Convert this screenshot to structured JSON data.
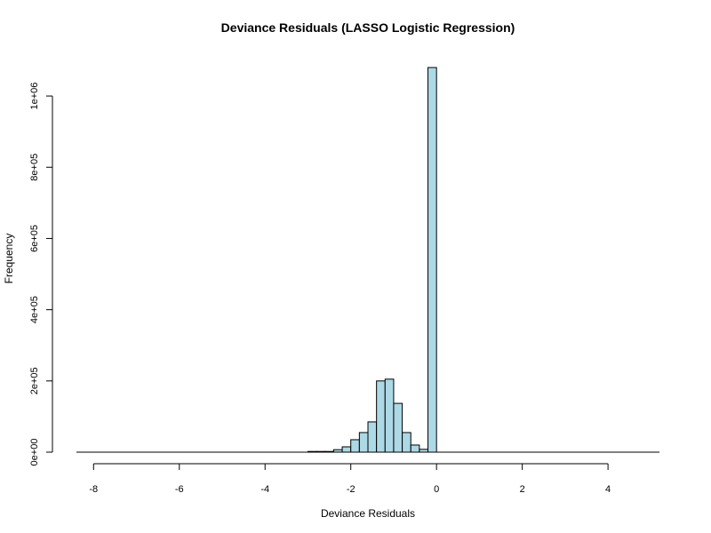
{
  "chart_data": {
    "type": "bar",
    "title": "Deviance Residuals (LASSO Logistic Regression)",
    "xlabel": "Deviance Residuals",
    "ylabel": "Frequency",
    "xlim": [
      -8.4,
      5.2
    ],
    "ylim": [
      0,
      1080000
    ],
    "x_ticks": [
      -8,
      -6,
      -4,
      -2,
      0,
      2,
      4
    ],
    "x_tick_labels": [
      "-8",
      "-6",
      "-4",
      "-2",
      "0",
      "2",
      "4"
    ],
    "y_ticks": [
      0,
      200000,
      400000,
      600000,
      800000,
      1000000
    ],
    "y_tick_labels": [
      "0e+00",
      "2e+05",
      "4e+05",
      "6e+05",
      "8e+05",
      "1e+06"
    ],
    "bar_fill": "#add8e6",
    "bar_stroke": "#000000",
    "grid": false,
    "legend": "none",
    "bins": [
      {
        "x0": -8.4,
        "x1": -3.0,
        "count": 0
      },
      {
        "x0": -3.0,
        "x1": -2.8,
        "count": 2000
      },
      {
        "x0": -2.8,
        "x1": -2.6,
        "count": 2000
      },
      {
        "x0": -2.6,
        "x1": -2.4,
        "count": 2000
      },
      {
        "x0": -2.4,
        "x1": -2.2,
        "count": 7000
      },
      {
        "x0": -2.2,
        "x1": -2.0,
        "count": 15000
      },
      {
        "x0": -2.0,
        "x1": -1.8,
        "count": 35000
      },
      {
        "x0": -1.8,
        "x1": -1.6,
        "count": 55000
      },
      {
        "x0": -1.6,
        "x1": -1.4,
        "count": 85000
      },
      {
        "x0": -1.4,
        "x1": -1.2,
        "count": 200000
      },
      {
        "x0": -1.2,
        "x1": -1.0,
        "count": 205000
      },
      {
        "x0": -1.0,
        "x1": -0.8,
        "count": 137000
      },
      {
        "x0": -0.8,
        "x1": -0.6,
        "count": 55000
      },
      {
        "x0": -0.6,
        "x1": -0.4,
        "count": 20000
      },
      {
        "x0": -0.4,
        "x1": -0.2,
        "count": 8000
      },
      {
        "x0": -0.2,
        "x1": 0.0,
        "count": 1080000
      },
      {
        "x0": 0.0,
        "x1": 5.2,
        "count": 0
      }
    ]
  }
}
